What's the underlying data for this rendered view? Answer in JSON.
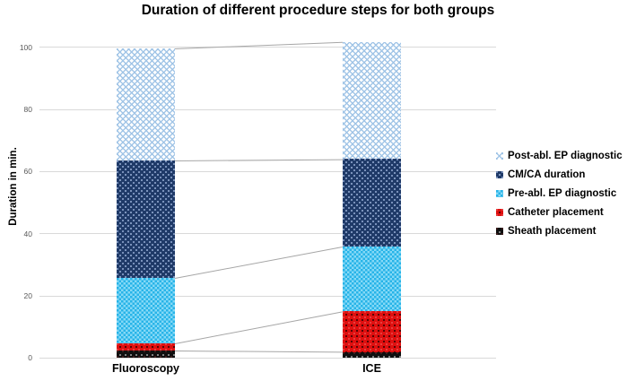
{
  "chart_data": {
    "type": "bar",
    "stacked": true,
    "title": "Duration of different procedure steps for both groups",
    "ylabel": "Duration in min.",
    "categories": [
      "Fluoroscopy",
      "ICE"
    ],
    "series": [
      {
        "key": "sheath-placement",
        "name": "Sheath placement",
        "color": "#0f0f0f",
        "values": [
          2.3,
          1.9
        ]
      },
      {
        "key": "catheter-placement",
        "name": "Catheter placement",
        "color": "#df1010",
        "values": [
          2.5,
          13.2
        ]
      },
      {
        "key": "pre-abl-ep-diagnostic",
        "name": "Pre-abl. EP diagnostic",
        "color": "#27b4e8",
        "values": [
          20.9,
          20.7
        ]
      },
      {
        "key": "cm-ca-duration",
        "name": "CM/CA duration",
        "color": "#1f3a68",
        "values": [
          38.0,
          28.3
        ]
      },
      {
        "key": "post-abl-ep-diagnostic",
        "name": "Post-abl. EP diagnostic",
        "color": "#c3d8f0",
        "values": [
          35.8,
          37.5
        ]
      }
    ],
    "stack_totals": [
      99.5,
      101.6
    ],
    "ylim": [
      0,
      100
    ],
    "yticks": [
      0,
      20,
      40,
      60,
      80,
      100
    ],
    "grid": true,
    "legend_position": "right",
    "connector_lines": true,
    "colors": {
      "gridline": "#d9d9d9",
      "tick_text": "#595959",
      "connector": "#a6a6a6",
      "text": "#000000",
      "background": "#ffffff"
    }
  }
}
